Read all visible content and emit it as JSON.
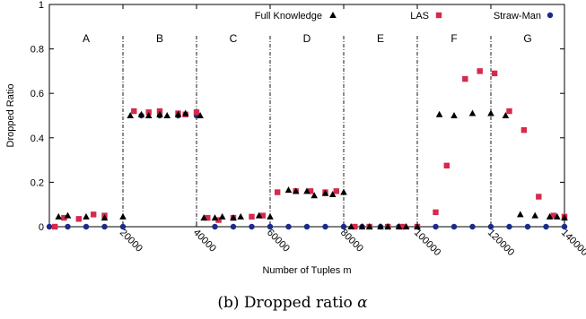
{
  "chart_data": {
    "type": "scatter",
    "xlabel": "Number of Tuples m",
    "ylabel": "Dropped Ratio",
    "xlim": [
      0,
      140000
    ],
    "ylim": [
      0,
      1
    ],
    "x_ticks": [
      20000,
      40000,
      60000,
      80000,
      100000,
      120000,
      140000
    ],
    "y_ticks": [
      0,
      0.2,
      0.4,
      0.6,
      0.8,
      1
    ],
    "y_tick_labels": [
      "0",
      "0.2",
      "0.4",
      "0.6",
      "0.8",
      "1"
    ],
    "grid": false,
    "legend_position": "top",
    "caption_prefix": "(b) Dropped ratio ",
    "caption_symbol": "α",
    "region_boundaries": [
      20000,
      40000,
      60000,
      80000,
      100000,
      120000
    ],
    "regions": [
      {
        "label": "A",
        "x": 10000
      },
      {
        "label": "B",
        "x": 30000
      },
      {
        "label": "C",
        "x": 50000
      },
      {
        "label": "D",
        "x": 70000
      },
      {
        "label": "E",
        "x": 90000
      },
      {
        "label": "F",
        "x": 110000
      },
      {
        "label": "G",
        "x": 130000
      }
    ],
    "series": [
      {
        "name": "Full Knowledge",
        "marker": "triangle",
        "color": "#000000",
        "points": [
          [
            2500,
            0.045
          ],
          [
            5000,
            0.05
          ],
          [
            10000,
            0.045
          ],
          [
            15000,
            0.04
          ],
          [
            20000,
            0.045
          ],
          [
            22000,
            0.5
          ],
          [
            25000,
            0.505
          ],
          [
            27000,
            0.5
          ],
          [
            30000,
            0.505
          ],
          [
            32000,
            0.5
          ],
          [
            35000,
            0.505
          ],
          [
            37000,
            0.51
          ],
          [
            41000,
            0.5
          ],
          [
            42000,
            0.04
          ],
          [
            45000,
            0.04
          ],
          [
            47000,
            0.045
          ],
          [
            50000,
            0.04
          ],
          [
            52000,
            0.045
          ],
          [
            57000,
            0.05
          ],
          [
            60000,
            0.045
          ],
          [
            65000,
            0.165
          ],
          [
            67000,
            0.16
          ],
          [
            70000,
            0.16
          ],
          [
            72000,
            0.14
          ],
          [
            75000,
            0.15
          ],
          [
            77000,
            0.145
          ],
          [
            80000,
            0.155
          ],
          [
            82000,
            0.0
          ],
          [
            85000,
            0.0
          ],
          [
            87000,
            0.0
          ],
          [
            90000,
            0.0
          ],
          [
            92000,
            0.0
          ],
          [
            95000,
            0.0
          ],
          [
            97000,
            0.0
          ],
          [
            100000,
            0.0
          ],
          [
            106000,
            0.505
          ],
          [
            110000,
            0.5
          ],
          [
            115000,
            0.51
          ],
          [
            120000,
            0.51
          ],
          [
            124000,
            0.5
          ],
          [
            128000,
            0.055
          ],
          [
            132000,
            0.05
          ],
          [
            136000,
            0.045
          ],
          [
            138000,
            0.045
          ],
          [
            140000,
            0.04
          ]
        ]
      },
      {
        "name": "LAS",
        "marker": "square",
        "color": "#d42a4c",
        "points": [
          [
            1500,
            0.0
          ],
          [
            4000,
            0.04
          ],
          [
            8000,
            0.035
          ],
          [
            12000,
            0.055
          ],
          [
            15000,
            0.05
          ],
          [
            23000,
            0.52
          ],
          [
            27000,
            0.515
          ],
          [
            30000,
            0.52
          ],
          [
            35000,
            0.51
          ],
          [
            37000,
            0.505
          ],
          [
            40000,
            0.515
          ],
          [
            43000,
            0.04
          ],
          [
            46000,
            0.03
          ],
          [
            50000,
            0.04
          ],
          [
            55000,
            0.045
          ],
          [
            58000,
            0.05
          ],
          [
            62000,
            0.155
          ],
          [
            67000,
            0.16
          ],
          [
            71000,
            0.16
          ],
          [
            75000,
            0.155
          ],
          [
            78000,
            0.16
          ],
          [
            83000,
            0.0
          ],
          [
            87000,
            0.0
          ],
          [
            92000,
            0.0
          ],
          [
            96000,
            0.0
          ],
          [
            100000,
            0.0
          ],
          [
            105000,
            0.065
          ],
          [
            108000,
            0.275
          ],
          [
            113000,
            0.665
          ],
          [
            117000,
            0.7
          ],
          [
            121000,
            0.69
          ],
          [
            125000,
            0.52
          ],
          [
            129000,
            0.435
          ],
          [
            133000,
            0.135
          ],
          [
            137000,
            0.05
          ],
          [
            140000,
            0.045
          ]
        ]
      },
      {
        "name": "Straw-Man",
        "marker": "circle",
        "color": "#1c2a8c",
        "points": [
          [
            0,
            0.0
          ],
          [
            5000,
            0.0
          ],
          [
            10000,
            0.0
          ],
          [
            15000,
            0.0
          ],
          [
            20000,
            0.0
          ],
          [
            25000,
            0.5
          ],
          [
            30000,
            0.5
          ],
          [
            35000,
            0.5
          ],
          [
            40000,
            0.5
          ],
          [
            45000,
            0.0
          ],
          [
            50000,
            0.0
          ],
          [
            55000,
            0.0
          ],
          [
            60000,
            0.0
          ],
          [
            65000,
            0.0
          ],
          [
            70000,
            0.0
          ],
          [
            75000,
            0.0
          ],
          [
            80000,
            0.0
          ],
          [
            85000,
            0.0
          ],
          [
            90000,
            0.0
          ],
          [
            95000,
            0.0
          ],
          [
            100000,
            0.0
          ],
          [
            105000,
            0.0
          ],
          [
            110000,
            0.0
          ],
          [
            115000,
            0.0
          ],
          [
            120000,
            0.0
          ],
          [
            125000,
            0.0
          ],
          [
            130000,
            0.0
          ],
          [
            135000,
            0.0
          ],
          [
            140000,
            0.0
          ]
        ]
      }
    ]
  }
}
